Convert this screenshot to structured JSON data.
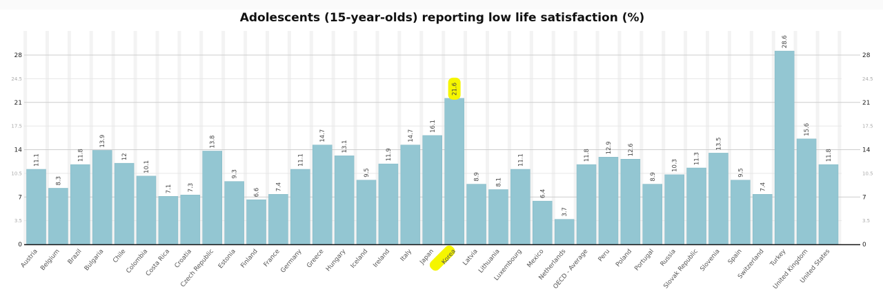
{
  "chart_data": {
    "type": "bar",
    "title": "Adolescents (15-year-olds) reporting low life satisfaction (%)",
    "xlabel": "",
    "ylabel": "",
    "ylim": [
      0,
      31.5
    ],
    "yticks_major": [
      0,
      7,
      14,
      21,
      28
    ],
    "yticks_minor": [
      3.5,
      10.5,
      17.5,
      24.5
    ],
    "ytick_labels_major": [
      "0",
      "7",
      "14",
      "21",
      "28"
    ],
    "ytick_labels_minor": [
      "3.5",
      "10.5",
      "17.5",
      "24.5"
    ],
    "y_axis_sides": [
      "left",
      "right"
    ],
    "grid": true,
    "legend": "none",
    "bar_color": "#93c6d2",
    "highlight_color": "#f5f500",
    "highlighted_category": "Korea",
    "categories": [
      "Austria",
      "Belgium",
      "Brazil",
      "Bulgaria",
      "Chile",
      "Colombia",
      "Costa Rica",
      "Croatia",
      "Czech Republic",
      "Estonia",
      "Finland",
      "France",
      "Germany",
      "Greece",
      "Hungary",
      "Iceland",
      "Ireland",
      "Italy",
      "Japan",
      "Korea",
      "Latvia",
      "Lithuania",
      "Luxembourg",
      "Mexico",
      "Netherlands",
      "OECD - Average",
      "Peru",
      "Poland",
      "Portugal",
      "Russia",
      "Slovak Republic",
      "Slovenia",
      "Spain",
      "Switzerland",
      "Turkey",
      "United Kingdom",
      "United States"
    ],
    "values": [
      11.1,
      8.3,
      11.8,
      13.9,
      12,
      10.1,
      7.1,
      7.3,
      13.8,
      9.3,
      6.6,
      7.4,
      11.1,
      14.7,
      13.1,
      9.5,
      11.9,
      14.7,
      16.1,
      21.6,
      8.9,
      8.1,
      11.1,
      6.4,
      3.7,
      11.8,
      12.9,
      12.6,
      8.9,
      10.3,
      11.3,
      13.5,
      9.5,
      7.4,
      28.6,
      15.6,
      11.8
    ],
    "value_labels": [
      "11.1",
      "8.3",
      "11.8",
      "13.9",
      "12",
      "10.1",
      "7.1",
      "7.3",
      "13.8",
      "9.3",
      "6.6",
      "7.4",
      "11.1",
      "14.7",
      "13.1",
      "9.5",
      "11.9",
      "14.7",
      "16.1",
      "21.6",
      "8.9",
      "8.1",
      "11.1",
      "6.4",
      "3.7",
      "11.8",
      "12.9",
      "12.6",
      "8.9",
      "10.3",
      "11.3",
      "13.5",
      "9.5",
      "7.4",
      "28.6",
      "15.6",
      "11.8"
    ]
  }
}
